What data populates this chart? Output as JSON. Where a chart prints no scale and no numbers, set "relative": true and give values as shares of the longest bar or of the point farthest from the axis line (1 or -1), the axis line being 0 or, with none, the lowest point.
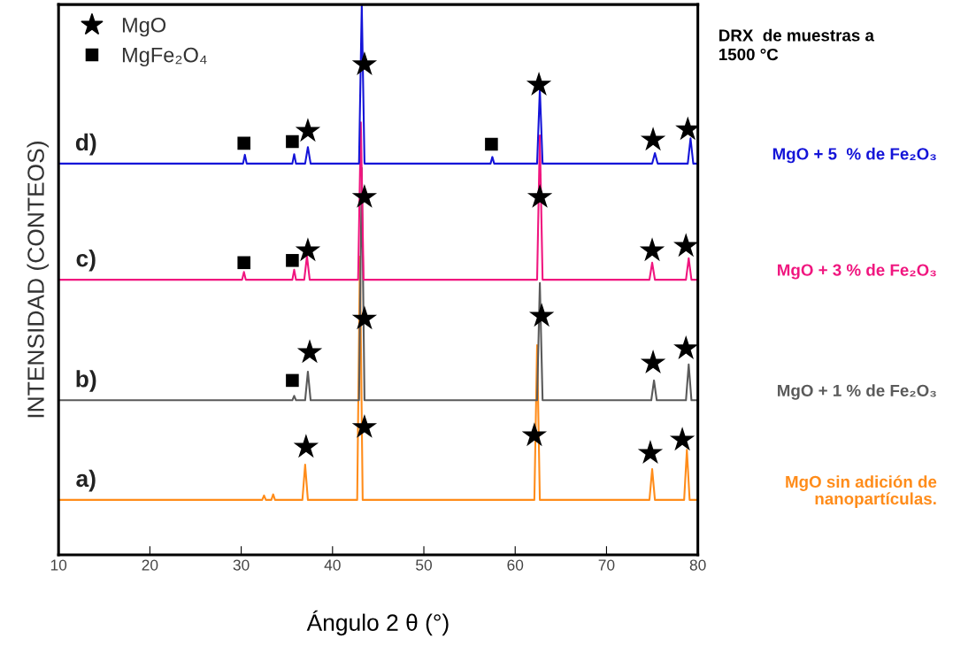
{
  "chart_data": {
    "type": "line",
    "title": "DRX  de muestras a\n1500 °C",
    "xlabel": "Ángulo 2 θ (°)",
    "ylabel": "INTENSIDAD (CONTEOS)",
    "relative": true,
    "xlim": [
      10,
      80
    ],
    "xticks": [
      10,
      20,
      30,
      40,
      50,
      60,
      70,
      80
    ],
    "tick_labels": "x",
    "grid": false,
    "legend": "top left",
    "series": [
      {
        "name": "MgO sin adición de\nnanopartículas.",
        "color": "#ff8c1a",
        "x": [
          10,
          32.3,
          32.5,
          32.7,
          33.3,
          33.5,
          33.7,
          36.7,
          37.0,
          37.3,
          42.7,
          43.0,
          43.3,
          62.1,
          62.4,
          62.7,
          74.7,
          75.0,
          75.3,
          78.5,
          78.8,
          79.1,
          80
        ],
        "values": [
          0.1,
          0.1,
          0.108,
          0.1,
          0.1,
          0.11,
          0.1,
          0.1,
          0.164,
          0.1,
          0.1,
          0.542,
          0.1,
          0.1,
          0.381,
          0.1,
          0.1,
          0.156,
          0.1,
          0.1,
          0.191,
          0.1,
          0.1
        ]
      },
      {
        "name": "MgO + 1 % de Fe₂O₃",
        "color": "#5a5a5a",
        "x": [
          10,
          35.6,
          35.8,
          36.0,
          37.0,
          37.3,
          37.6,
          42.9,
          43.2,
          43.5,
          62.4,
          62.7,
          63.0,
          74.9,
          75.2,
          75.5,
          78.7,
          79.0,
          79.3,
          80
        ],
        "values": [
          0.281,
          0.281,
          0.289,
          0.281,
          0.281,
          0.333,
          0.281,
          0.281,
          0.703,
          0.281,
          0.281,
          0.494,
          0.281,
          0.281,
          0.317,
          0.281,
          0.281,
          0.346,
          0.281,
          0.281
        ]
      },
      {
        "name": "MgO + 3 % de Fe₂O₃",
        "color": "#f0167f",
        "x": [
          10,
          30.1,
          30.3,
          30.5,
          35.6,
          35.8,
          36.0,
          36.9,
          37.2,
          37.5,
          42.8,
          43.1,
          43.4,
          62.4,
          62.7,
          63.0,
          74.7,
          75.0,
          75.3,
          78.7,
          79.0,
          79.3,
          80
        ],
        "values": [
          0.5,
          0.5,
          0.514,
          0.5,
          0.5,
          0.518,
          0.5,
          0.5,
          0.543,
          0.5,
          0.5,
          0.786,
          0.5,
          0.5,
          0.762,
          0.5,
          0.5,
          0.531,
          0.5,
          0.5,
          0.539,
          0.5,
          0.5
        ]
      },
      {
        "name": "MgO + 5  % de Fe₂O₃",
        "color": "#1414d8",
        "x": [
          10,
          30.2,
          30.4,
          30.6,
          35.6,
          35.8,
          36.0,
          37.0,
          37.3,
          37.6,
          42.9,
          43.2,
          43.5,
          57.3,
          57.5,
          57.7,
          62.4,
          62.7,
          63.0,
          75.0,
          75.3,
          75.6,
          78.9,
          79.2,
          79.5,
          80
        ],
        "values": [
          0.711,
          0.711,
          0.727,
          0.711,
          0.711,
          0.728,
          0.711,
          0.711,
          0.741,
          0.711,
          0.711,
          1.0,
          0.711,
          0.711,
          0.723,
          0.711,
          0.711,
          0.847,
          0.711,
          0.711,
          0.73,
          0.711,
          0.711,
          0.757,
          0.711,
          0.711
        ]
      },
      {
        "name": "MgO",
        "type": "scatter",
        "marker": "star",
        "color": "#000000",
        "x": [
          37.1,
          43.5,
          62.1,
          74.8,
          78.3,
          37.5,
          43.5,
          62.9,
          75.1,
          78.7,
          37.3,
          43.5,
          62.7,
          75.0,
          78.7,
          37.3,
          43.5,
          62.6,
          75.1,
          78.9
        ],
        "values": [
          0.196,
          0.232,
          0.217,
          0.185,
          0.209,
          0.368,
          0.429,
          0.434,
          0.349,
          0.375,
          0.553,
          0.65,
          0.65,
          0.553,
          0.561,
          0.77,
          0.891,
          0.854,
          0.754,
          0.773
        ]
      },
      {
        "name": "MgFe₂O₄",
        "type": "scatter",
        "marker": "square",
        "color": "#000000",
        "x": [
          30.3,
          35.6,
          57.4,
          30.3,
          35.6,
          35.6
        ],
        "values": [
          0.748,
          0.751,
          0.746,
          0.531,
          0.535,
          0.317
        ]
      }
    ],
    "annotations": [
      "a)",
      "b)",
      "c)",
      "d)"
    ]
  }
}
